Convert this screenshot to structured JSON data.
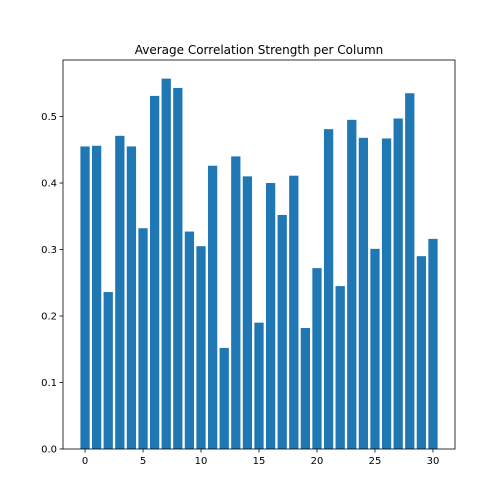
{
  "chart_data": {
    "type": "bar",
    "title": "Average Correlation Strength per Column",
    "xlabel": "",
    "ylabel": "",
    "color": "#1f77b4",
    "x": [
      0,
      1,
      2,
      3,
      4,
      5,
      6,
      7,
      8,
      9,
      10,
      11,
      12,
      13,
      14,
      15,
      16,
      17,
      18,
      19,
      20,
      21,
      22,
      23,
      24,
      25,
      26,
      27,
      28,
      29,
      30
    ],
    "values": [
      0.455,
      0.456,
      0.236,
      0.471,
      0.455,
      0.332,
      0.531,
      0.557,
      0.543,
      0.327,
      0.305,
      0.426,
      0.152,
      0.44,
      0.41,
      0.19,
      0.4,
      0.352,
      0.411,
      0.182,
      0.272,
      0.481,
      0.245,
      0.495,
      0.468,
      0.301,
      0.467,
      0.497,
      0.535,
      0.29,
      0.316
    ],
    "xlim": [
      -1.9,
      31.9
    ],
    "ylim": [
      0,
      0.585
    ],
    "xticks": [
      0,
      5,
      10,
      15,
      20,
      25,
      30
    ],
    "yticks": [
      0.0,
      0.1,
      0.2,
      0.3,
      0.4,
      0.5
    ],
    "ytick_labels": [
      "0.0",
      "0.1",
      "0.2",
      "0.3",
      "0.4",
      "0.5"
    ],
    "grid": false
  }
}
